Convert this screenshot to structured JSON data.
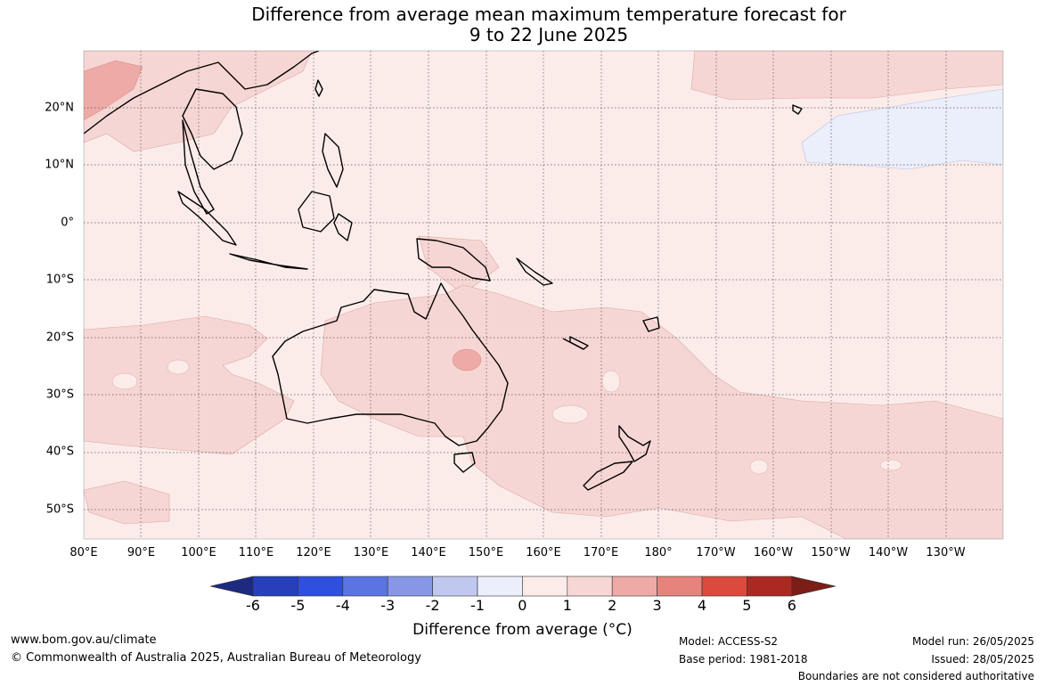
{
  "title_line1": "Difference from average mean maximum temperature forecast for",
  "title_line2": "9 to 22 June 2025",
  "longitude_labels": [
    "80°E",
    "90°E",
    "100°E",
    "110°E",
    "120°E",
    "130°E",
    "140°E",
    "150°E",
    "160°E",
    "170°E",
    "180°",
    "170°W",
    "160°W",
    "150°W",
    "140°W",
    "130°W"
  ],
  "latitude_labels": [
    "20°N",
    "10°N",
    "0°",
    "10°S",
    "20°S",
    "30°S",
    "40°S",
    "50°S"
  ],
  "colorbar": {
    "ticks": [
      "-6",
      "-5",
      "-4",
      "-3",
      "-2",
      "-1",
      "0",
      "1",
      "2",
      "3",
      "4",
      "5",
      "6"
    ],
    "colors": [
      "#1c2a80",
      "#2540b8",
      "#2f4fdd",
      "#5a74e0",
      "#8797e6",
      "#c1c8f0",
      "#ebeefb",
      "#fbecea",
      "#f7d7d5",
      "#eeaaa6",
      "#e5847c",
      "#db4a3c",
      "#aa2a22",
      "#7c1d18"
    ],
    "label": "Difference from average (°C)"
  },
  "map_colors": {
    "ocean_base": "#fbecea",
    "warm_1_2": "#f6d6d4",
    "warm_2_3": "#eeaaa6",
    "cool_0_m1": "#ebeefb",
    "coast": "#000000",
    "grid": "#555555"
  },
  "footer": {
    "site": "www.bom.gov.au/climate",
    "copyright": "© Commonwealth of Australia 2025, Australian Bureau of Meteorology",
    "model": "Model: ACCESS-S2",
    "base_period": "Base period: 1981-2018",
    "model_run": "Model run: 26/05/2025",
    "issued": "Issued: 28/05/2025",
    "disclaimer": "Boundaries are not considered authoritative"
  }
}
